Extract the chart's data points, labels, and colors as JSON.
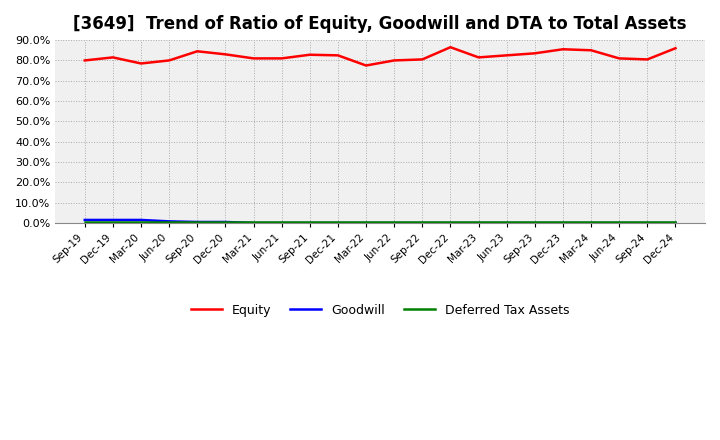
{
  "title": "[3649]  Trend of Ratio of Equity, Goodwill and DTA to Total Assets",
  "x_labels": [
    "Sep-19",
    "Dec-19",
    "Mar-20",
    "Jun-20",
    "Sep-20",
    "Dec-20",
    "Mar-21",
    "Jun-21",
    "Sep-21",
    "Dec-21",
    "Mar-22",
    "Jun-22",
    "Sep-22",
    "Dec-22",
    "Mar-23",
    "Jun-23",
    "Sep-23",
    "Dec-23",
    "Mar-24",
    "Jun-24",
    "Sep-24",
    "Dec-24"
  ],
  "equity": [
    80.0,
    81.5,
    78.5,
    80.0,
    84.5,
    83.0,
    81.0,
    81.0,
    82.8,
    82.5,
    77.5,
    80.0,
    80.5,
    86.5,
    81.5,
    82.5,
    83.5,
    85.5,
    85.0,
    81.0,
    80.5,
    86.0
  ],
  "goodwill": [
    1.5,
    1.5,
    1.5,
    0.8,
    0.5,
    0.5,
    0.0,
    0.0,
    0.0,
    0.0,
    0.0,
    0.0,
    0.0,
    0.0,
    0.0,
    0.0,
    0.0,
    0.0,
    0.0,
    0.0,
    0.0,
    0.0
  ],
  "dta": [
    0.3,
    0.3,
    0.3,
    0.3,
    0.3,
    0.3,
    0.3,
    0.3,
    0.3,
    0.3,
    0.3,
    0.3,
    0.3,
    0.3,
    0.3,
    0.3,
    0.3,
    0.3,
    0.3,
    0.3,
    0.3,
    0.3
  ],
  "equity_color": "#FF0000",
  "goodwill_color": "#0000FF",
  "dta_color": "#008000",
  "ylim": [
    0.0,
    90.0
  ],
  "yticks": [
    0.0,
    10.0,
    20.0,
    30.0,
    40.0,
    50.0,
    60.0,
    70.0,
    80.0,
    90.0
  ],
  "background_color": "#FFFFFF",
  "plot_bg_color": "#F0F0F0",
  "grid_color": "#AAAAAA",
  "title_fontsize": 12,
  "legend_labels": [
    "Equity",
    "Goodwill",
    "Deferred Tax Assets"
  ]
}
